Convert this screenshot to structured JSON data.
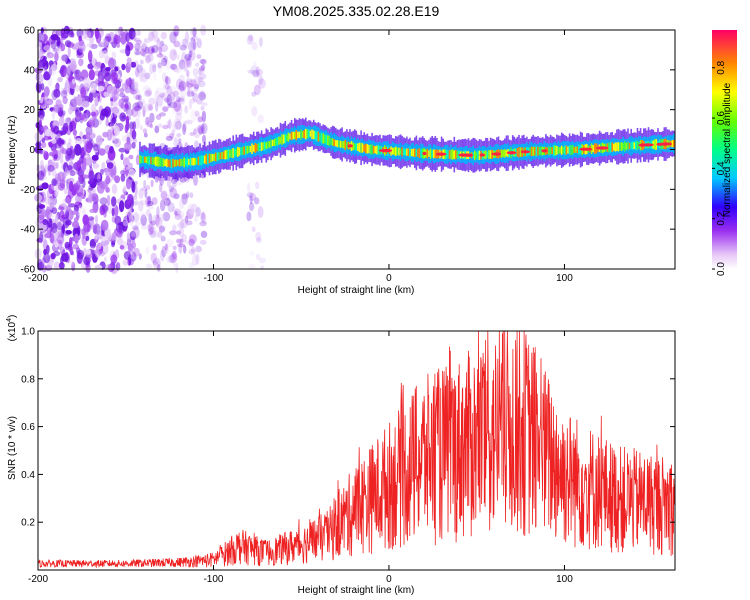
{
  "title": "YM08.2025.335.02.28.E19",
  "chart_data": [
    {
      "type": "heatmap",
      "name": "spectrogram",
      "xlabel": "Height of straight line (km)",
      "ylabel": "Frequency (Hz)",
      "xlim": [
        -200,
        163
      ],
      "ylim": [
        -60,
        60
      ],
      "x_ticks": [
        "-200",
        "-100",
        "0",
        "100"
      ],
      "y_ticks": [
        "60",
        "40",
        "20",
        "0",
        "-20",
        "-40",
        "-60"
      ],
      "colorbar": {
        "label": "Normalized spectral amplitude",
        "range": [
          0.0,
          0.95
        ],
        "ticks": [
          "0.0",
          "0.2",
          "0.4",
          "0.6",
          "0.8"
        ]
      },
      "ridge_center": [
        {
          "x": -140,
          "y": -5
        },
        {
          "x": -125,
          "y": -7
        },
        {
          "x": -110,
          "y": -6
        },
        {
          "x": -90,
          "y": -2
        },
        {
          "x": -70,
          "y": 2
        },
        {
          "x": -55,
          "y": 7
        },
        {
          "x": -45,
          "y": 8
        },
        {
          "x": -30,
          "y": 3
        },
        {
          "x": -10,
          "y": 0
        },
        {
          "x": 20,
          "y": -2
        },
        {
          "x": 50,
          "y": -3
        },
        {
          "x": 80,
          "y": -1
        },
        {
          "x": 110,
          "y": 0
        },
        {
          "x": 140,
          "y": 2
        },
        {
          "x": 163,
          "y": 3
        }
      ]
    },
    {
      "type": "line",
      "name": "snr",
      "xlabel": "Height of straight line (km)",
      "ylabel": "SNR (10 * v/v)",
      "scale_note": "(x10",
      "scale_exp": "4",
      "scale_close": ")",
      "xlim": [
        -200,
        163
      ],
      "ylim": [
        0,
        1.0
      ],
      "x_ticks": [
        "-200",
        "-100",
        "0",
        "100"
      ],
      "y_ticks": [
        "1.0",
        "0.8",
        "0.6",
        "0.4",
        "0.2"
      ],
      "envelope": [
        {
          "x": -200,
          "y": 0.03
        },
        {
          "x": -150,
          "y": 0.03
        },
        {
          "x": -120,
          "y": 0.04
        },
        {
          "x": -100,
          "y": 0.06
        },
        {
          "x": -85,
          "y": 0.14
        },
        {
          "x": -70,
          "y": 0.1
        },
        {
          "x": -50,
          "y": 0.15
        },
        {
          "x": -35,
          "y": 0.2
        },
        {
          "x": -20,
          "y": 0.35
        },
        {
          "x": 0,
          "y": 0.5
        },
        {
          "x": 20,
          "y": 0.65
        },
        {
          "x": 50,
          "y": 0.75
        },
        {
          "x": 75,
          "y": 0.85
        },
        {
          "x": 100,
          "y": 0.55
        },
        {
          "x": 130,
          "y": 0.42
        },
        {
          "x": 163,
          "y": 0.38
        }
      ],
      "color": "#ee2222"
    }
  ]
}
